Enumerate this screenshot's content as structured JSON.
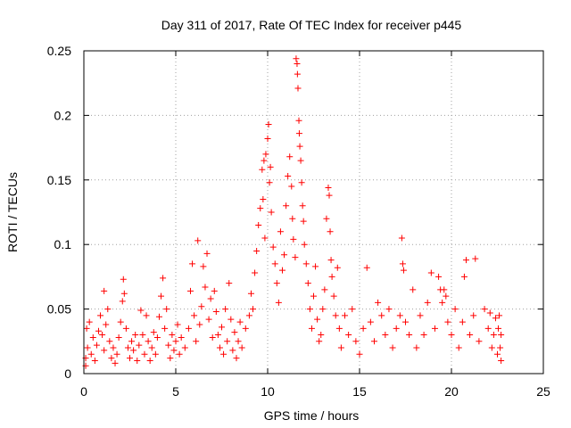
{
  "chart_data": {
    "type": "scatter",
    "title": "Day 311 of 2017, Rate Of TEC Index for receiver p445",
    "xlabel": "GPS time / hours",
    "ylabel": "ROTI / TECUs",
    "xlim": [
      0,
      25
    ],
    "ylim": [
      0,
      0.25
    ],
    "xticks": [
      0,
      5,
      10,
      15,
      20,
      25
    ],
    "xtick_labels": [
      "0",
      "5",
      "10",
      "15",
      "20",
      "25"
    ],
    "yticks": [
      0,
      0.05,
      0.1,
      0.15,
      0.2,
      0.25
    ],
    "ytick_labels": [
      "0",
      "0.05",
      "0.1",
      "0.15",
      "0.2",
      "0.25"
    ],
    "grid": true,
    "marker": "+",
    "color": "#ff0000",
    "series": [
      {
        "name": "ROTI",
        "points": [
          [
            0.1,
            0.006
          ],
          [
            0.1,
            0.012
          ],
          [
            0.15,
            0.035
          ],
          [
            0.2,
            0.02
          ],
          [
            0.3,
            0.04
          ],
          [
            0.4,
            0.015
          ],
          [
            0.5,
            0.028
          ],
          [
            0.6,
            0.01
          ],
          [
            0.7,
            0.022
          ],
          [
            0.8,
            0.033
          ],
          [
            0.9,
            0.045
          ],
          [
            1.0,
            0.03
          ],
          [
            1.1,
            0.018
          ],
          [
            1.1,
            0.064
          ],
          [
            1.2,
            0.038
          ],
          [
            1.3,
            0.05
          ],
          [
            1.4,
            0.025
          ],
          [
            1.5,
            0.012
          ],
          [
            1.6,
            0.02
          ],
          [
            1.7,
            0.008
          ],
          [
            1.8,
            0.015
          ],
          [
            1.9,
            0.028
          ],
          [
            2.0,
            0.04
          ],
          [
            2.1,
            0.056
          ],
          [
            2.15,
            0.073
          ],
          [
            2.2,
            0.062
          ],
          [
            2.3,
            0.035
          ],
          [
            2.4,
            0.02
          ],
          [
            2.5,
            0.012
          ],
          [
            2.6,
            0.025
          ],
          [
            2.7,
            0.018
          ],
          [
            2.8,
            0.03
          ],
          [
            2.9,
            0.01
          ],
          [
            3.0,
            0.022
          ],
          [
            3.1,
            0.049
          ],
          [
            3.2,
            0.03
          ],
          [
            3.3,
            0.015
          ],
          [
            3.4,
            0.045
          ],
          [
            3.5,
            0.025
          ],
          [
            3.6,
            0.01
          ],
          [
            3.7,
            0.02
          ],
          [
            3.8,
            0.032
          ],
          [
            3.9,
            0.015
          ],
          [
            4.0,
            0.028
          ],
          [
            4.1,
            0.044
          ],
          [
            4.2,
            0.06
          ],
          [
            4.3,
            0.074
          ],
          [
            4.4,
            0.035
          ],
          [
            4.5,
            0.05
          ],
          [
            4.6,
            0.022
          ],
          [
            4.7,
            0.012
          ],
          [
            4.8,
            0.03
          ],
          [
            4.9,
            0.018
          ],
          [
            5.0,
            0.025
          ],
          [
            5.1,
            0.038
          ],
          [
            5.2,
            0.015
          ],
          [
            5.3,
            0.028
          ],
          [
            5.5,
            0.02
          ],
          [
            5.7,
            0.035
          ],
          [
            5.8,
            0.064
          ],
          [
            5.9,
            0.085
          ],
          [
            6.0,
            0.045
          ],
          [
            6.1,
            0.025
          ],
          [
            6.2,
            0.103
          ],
          [
            6.3,
            0.038
          ],
          [
            6.4,
            0.052
          ],
          [
            6.5,
            0.083
          ],
          [
            6.6,
            0.067
          ],
          [
            6.7,
            0.093
          ],
          [
            6.8,
            0.042
          ],
          [
            6.9,
            0.058
          ],
          [
            7.0,
            0.028
          ],
          [
            7.1,
            0.064
          ],
          [
            7.2,
            0.048
          ],
          [
            7.3,
            0.03
          ],
          [
            7.4,
            0.02
          ],
          [
            7.5,
            0.036
          ],
          [
            7.6,
            0.015
          ],
          [
            7.7,
            0.05
          ],
          [
            7.8,
            0.025
          ],
          [
            7.9,
            0.07
          ],
          [
            8.0,
            0.042
          ],
          [
            8.1,
            0.018
          ],
          [
            8.2,
            0.032
          ],
          [
            8.3,
            0.012
          ],
          [
            8.4,
            0.025
          ],
          [
            8.5,
            0.04
          ],
          [
            8.6,
            0.02
          ],
          [
            8.8,
            0.035
          ],
          [
            9.0,
            0.045
          ],
          [
            9.1,
            0.062
          ],
          [
            9.2,
            0.05
          ],
          [
            9.3,
            0.078
          ],
          [
            9.4,
            0.095
          ],
          [
            9.5,
            0.115
          ],
          [
            9.6,
            0.128
          ],
          [
            9.7,
            0.158
          ],
          [
            9.75,
            0.135
          ],
          [
            9.8,
            0.165
          ],
          [
            9.85,
            0.105
          ],
          [
            9.9,
            0.17
          ],
          [
            10.0,
            0.182
          ],
          [
            10.05,
            0.193
          ],
          [
            10.1,
            0.148
          ],
          [
            10.15,
            0.16
          ],
          [
            10.2,
            0.125
          ],
          [
            10.3,
            0.098
          ],
          [
            10.4,
            0.085
          ],
          [
            10.5,
            0.07
          ],
          [
            10.6,
            0.055
          ],
          [
            10.7,
            0.11
          ],
          [
            10.8,
            0.08
          ],
          [
            10.9,
            0.092
          ],
          [
            11.0,
            0.13
          ],
          [
            11.1,
            0.153
          ],
          [
            11.2,
            0.168
          ],
          [
            11.3,
            0.145
          ],
          [
            11.35,
            0.12
          ],
          [
            11.4,
            0.104
          ],
          [
            11.5,
            0.09
          ],
          [
            11.55,
            0.244
          ],
          [
            11.6,
            0.24
          ],
          [
            11.62,
            0.232
          ],
          [
            11.65,
            0.221
          ],
          [
            11.7,
            0.196
          ],
          [
            11.72,
            0.186
          ],
          [
            11.75,
            0.176
          ],
          [
            11.8,
            0.165
          ],
          [
            11.85,
            0.148
          ],
          [
            11.9,
            0.13
          ],
          [
            11.95,
            0.118
          ],
          [
            12.0,
            0.1
          ],
          [
            12.1,
            0.085
          ],
          [
            12.2,
            0.07
          ],
          [
            12.3,
            0.05
          ],
          [
            12.4,
            0.035
          ],
          [
            12.5,
            0.06
          ],
          [
            12.6,
            0.083
          ],
          [
            12.7,
            0.042
          ],
          [
            12.8,
            0.025
          ],
          [
            12.9,
            0.03
          ],
          [
            13.0,
            0.05
          ],
          [
            13.1,
            0.065
          ],
          [
            13.2,
            0.12
          ],
          [
            13.3,
            0.144
          ],
          [
            13.35,
            0.138
          ],
          [
            13.4,
            0.11
          ],
          [
            13.45,
            0.088
          ],
          [
            13.5,
            0.075
          ],
          [
            13.6,
            0.06
          ],
          [
            13.7,
            0.045
          ],
          [
            13.8,
            0.082
          ],
          [
            13.9,
            0.035
          ],
          [
            14.0,
            0.02
          ],
          [
            14.2,
            0.045
          ],
          [
            14.4,
            0.03
          ],
          [
            14.6,
            0.05
          ],
          [
            14.8,
            0.025
          ],
          [
            15.0,
            0.015
          ],
          [
            15.2,
            0.035
          ],
          [
            15.4,
            0.082
          ],
          [
            15.6,
            0.04
          ],
          [
            15.8,
            0.025
          ],
          [
            16.0,
            0.055
          ],
          [
            16.2,
            0.045
          ],
          [
            16.4,
            0.03
          ],
          [
            16.6,
            0.05
          ],
          [
            16.8,
            0.02
          ],
          [
            17.0,
            0.035
          ],
          [
            17.2,
            0.045
          ],
          [
            17.3,
            0.105
          ],
          [
            17.35,
            0.085
          ],
          [
            17.4,
            0.08
          ],
          [
            17.5,
            0.04
          ],
          [
            17.7,
            0.03
          ],
          [
            17.9,
            0.065
          ],
          [
            18.1,
            0.02
          ],
          [
            18.3,
            0.045
          ],
          [
            18.5,
            0.03
          ],
          [
            18.7,
            0.055
          ],
          [
            18.9,
            0.078
          ],
          [
            19.1,
            0.035
          ],
          [
            19.3,
            0.075
          ],
          [
            19.4,
            0.065
          ],
          [
            19.5,
            0.055
          ],
          [
            19.6,
            0.065
          ],
          [
            19.7,
            0.06
          ],
          [
            19.8,
            0.04
          ],
          [
            20.0,
            0.03
          ],
          [
            20.2,
            0.05
          ],
          [
            20.4,
            0.02
          ],
          [
            20.6,
            0.04
          ],
          [
            20.7,
            0.075
          ],
          [
            20.8,
            0.088
          ],
          [
            21.0,
            0.03
          ],
          [
            21.2,
            0.045
          ],
          [
            21.3,
            0.089
          ],
          [
            21.5,
            0.025
          ],
          [
            21.8,
            0.05
          ],
          [
            22.0,
            0.035
          ],
          [
            22.1,
            0.047
          ],
          [
            22.2,
            0.02
          ],
          [
            22.3,
            0.03
          ],
          [
            22.4,
            0.043
          ],
          [
            22.5,
            0.015
          ],
          [
            22.55,
            0.035
          ],
          [
            22.6,
            0.045
          ],
          [
            22.65,
            0.02
          ],
          [
            22.7,
            0.01
          ],
          [
            22.7,
            0.03
          ]
        ]
      }
    ]
  }
}
